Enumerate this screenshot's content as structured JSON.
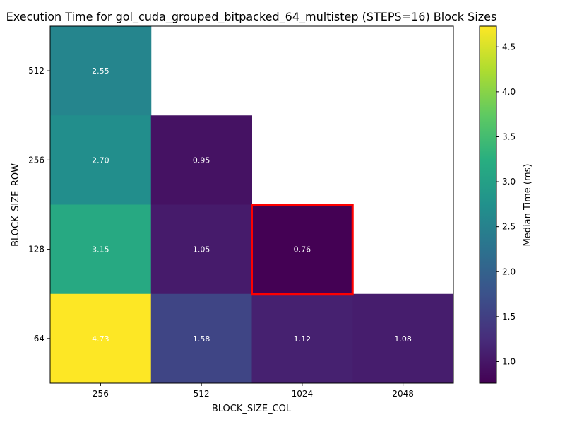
{
  "chart_data": {
    "type": "heatmap",
    "title": "Execution Time for gol_cuda_grouped_bitpacked_64_multistep (STEPS=16) Block Sizes",
    "xlabel": "BLOCK_SIZE_COL",
    "ylabel": "BLOCK_SIZE_ROW",
    "x_categories": [
      "256",
      "512",
      "1024",
      "2048"
    ],
    "y_categories": [
      "512",
      "256",
      "128",
      "64"
    ],
    "values": [
      [
        2.55,
        null,
        null,
        null
      ],
      [
        2.7,
        0.95,
        null,
        null
      ],
      [
        3.15,
        1.05,
        0.76,
        null
      ],
      [
        4.73,
        1.58,
        1.12,
        1.08
      ]
    ],
    "cell_labels": [
      [
        "2.55",
        "",
        "",
        ""
      ],
      [
        "2.70",
        "0.95",
        "",
        ""
      ],
      [
        "3.15",
        "1.05",
        "0.76",
        ""
      ],
      [
        "4.73",
        "1.58",
        "1.12",
        "1.08"
      ]
    ],
    "highlight": {
      "row": "128",
      "col": "1024",
      "color": "#ff0000"
    },
    "colormap": "viridis",
    "colorbar": {
      "label": "Median Time (ms)",
      "min": 0.76,
      "max": 4.73,
      "ticks": [
        1.0,
        1.5,
        2.0,
        2.5,
        3.0,
        3.5,
        4.0,
        4.5
      ],
      "tick_labels": [
        "1.0",
        "1.5",
        "2.0",
        "2.5",
        "3.0",
        "3.5",
        "4.0",
        "4.5"
      ]
    },
    "grid": false
  }
}
